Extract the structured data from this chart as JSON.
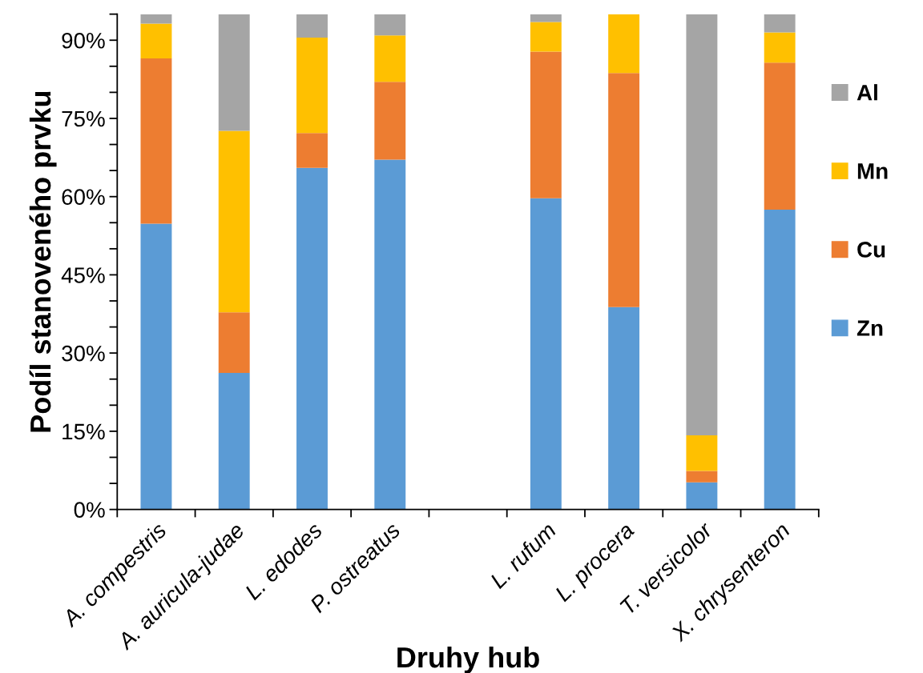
{
  "chart_data": {
    "type": "bar",
    "stacked": true,
    "xlabel": "Druhy hub",
    "ylabel": "Podíl stanoveného prvku",
    "categories": [
      "A. compestris",
      "A. auricula-judae",
      "L. edodes",
      "P. ostreatus",
      null,
      "L. rufum",
      "L. procera",
      "T. versicolor",
      "X. chrysenteron"
    ],
    "series": [
      {
        "name": "Zn",
        "color": "#5b9bd5",
        "values": [
          54.8,
          26.2,
          65.5,
          67.1,
          null,
          59.7,
          38.8,
          5.2,
          57.5
        ]
      },
      {
        "name": "Cu",
        "color": "#ed7d31",
        "values": [
          31.7,
          11.6,
          6.7,
          14.9,
          null,
          28.1,
          44.9,
          2.2,
          28.2
        ]
      },
      {
        "name": "Mn",
        "color": "#ffc000",
        "values": [
          6.7,
          34.8,
          18.3,
          8.9,
          null,
          5.7,
          11.3,
          6.8,
          5.8
        ]
      },
      {
        "name": "Al",
        "color": "#a5a5a5",
        "values": [
          1.8,
          22.4,
          4.5,
          4.1,
          null,
          1.5,
          0,
          80.8,
          3.5
        ]
      }
    ],
    "ylim": [
      0,
      95
    ],
    "yticks": [
      {
        "value": 0,
        "label": "0%"
      },
      {
        "value": 5,
        "label": null
      },
      {
        "value": 10,
        "label": null
      },
      {
        "value": 15,
        "label": "15%"
      },
      {
        "value": 20,
        "label": null
      },
      {
        "value": 25,
        "label": null
      },
      {
        "value": 30,
        "label": "30%"
      },
      {
        "value": 35,
        "label": null
      },
      {
        "value": 40,
        "label": null
      },
      {
        "value": 45,
        "label": "45%"
      },
      {
        "value": 50,
        "label": null
      },
      {
        "value": 55,
        "label": null
      },
      {
        "value": 60,
        "label": "60%"
      },
      {
        "value": 65,
        "label": null
      },
      {
        "value": 70,
        "label": null
      },
      {
        "value": 75,
        "label": "75%"
      },
      {
        "value": 80,
        "label": null
      },
      {
        "value": 85,
        "label": null
      },
      {
        "value": 90,
        "label": "90%"
      },
      {
        "value": 95,
        "label": null
      }
    ],
    "legend": "right",
    "grid": false
  }
}
